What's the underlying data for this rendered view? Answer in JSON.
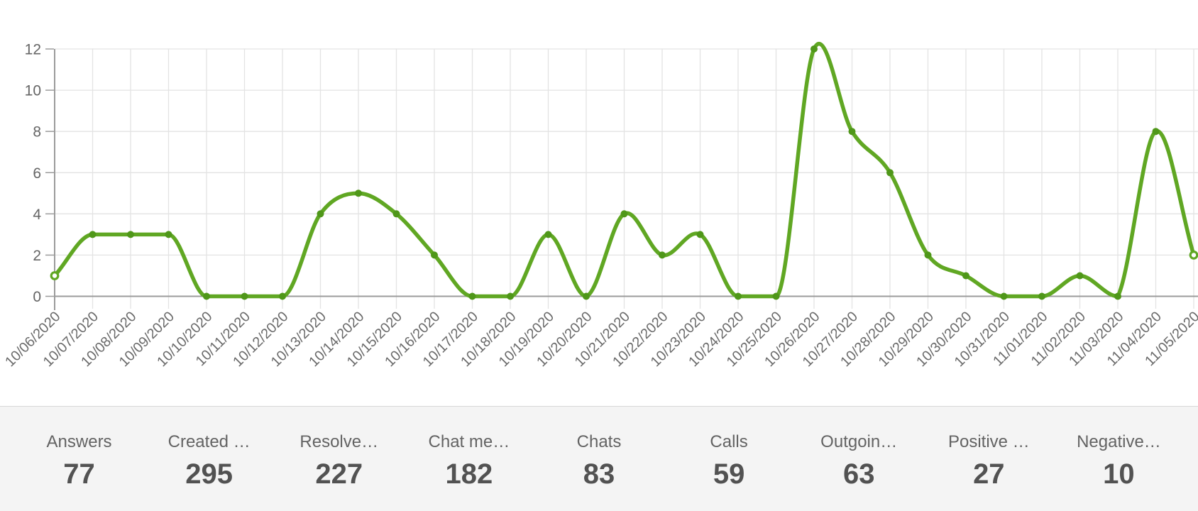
{
  "chart_data": {
    "type": "line",
    "title": "",
    "xlabel": "",
    "ylabel": "",
    "x": [
      "10/06/2020",
      "10/07/2020",
      "10/08/2020",
      "10/09/2020",
      "10/10/2020",
      "10/11/2020",
      "10/12/2020",
      "10/13/2020",
      "10/14/2020",
      "10/15/2020",
      "10/16/2020",
      "10/17/2020",
      "10/18/2020",
      "10/19/2020",
      "10/20/2020",
      "10/21/2020",
      "10/22/2020",
      "10/23/2020",
      "10/24/2020",
      "10/25/2020",
      "10/26/2020",
      "10/27/2020",
      "10/28/2020",
      "10/29/2020",
      "10/30/2020",
      "10/31/2020",
      "11/01/2020",
      "11/02/2020",
      "11/03/2020",
      "11/04/2020",
      "11/05/2020"
    ],
    "values": [
      1,
      3,
      3,
      3,
      0,
      0,
      0,
      4,
      5,
      4,
      2,
      0,
      0,
      3,
      0,
      4,
      2,
      3,
      0,
      0,
      12,
      8,
      6,
      2,
      1,
      0,
      0,
      1,
      0,
      8,
      2
    ],
    "yticks": [
      0,
      2,
      4,
      6,
      8,
      10,
      12
    ],
    "ylim": [
      0,
      12
    ],
    "grid": true,
    "legend": "none",
    "line_color": "#60a723",
    "marker_color": "#4f9719",
    "endpoint_fill": "#ffffff",
    "grid_color": "#e3e3e3",
    "axis_color": "#9b9b9b",
    "y_label_color": "#656565",
    "x_label_color": "#6a6a6a"
  },
  "stats": [
    {
      "label": "Answers",
      "value": "77"
    },
    {
      "label": "Created …",
      "value": "295"
    },
    {
      "label": "Resolve…",
      "value": "227"
    },
    {
      "label": "Chat me…",
      "value": "182"
    },
    {
      "label": "Chats",
      "value": "83"
    },
    {
      "label": "Calls",
      "value": "59"
    },
    {
      "label": "Outgoin…",
      "value": "63"
    },
    {
      "label": "Positive …",
      "value": "27"
    },
    {
      "label": "Negative…",
      "value": "10"
    }
  ],
  "panel": {
    "bg": "#f4f4f4",
    "border": "#d8d8d8",
    "label_color": "#636363",
    "value_color": "#525252"
  }
}
